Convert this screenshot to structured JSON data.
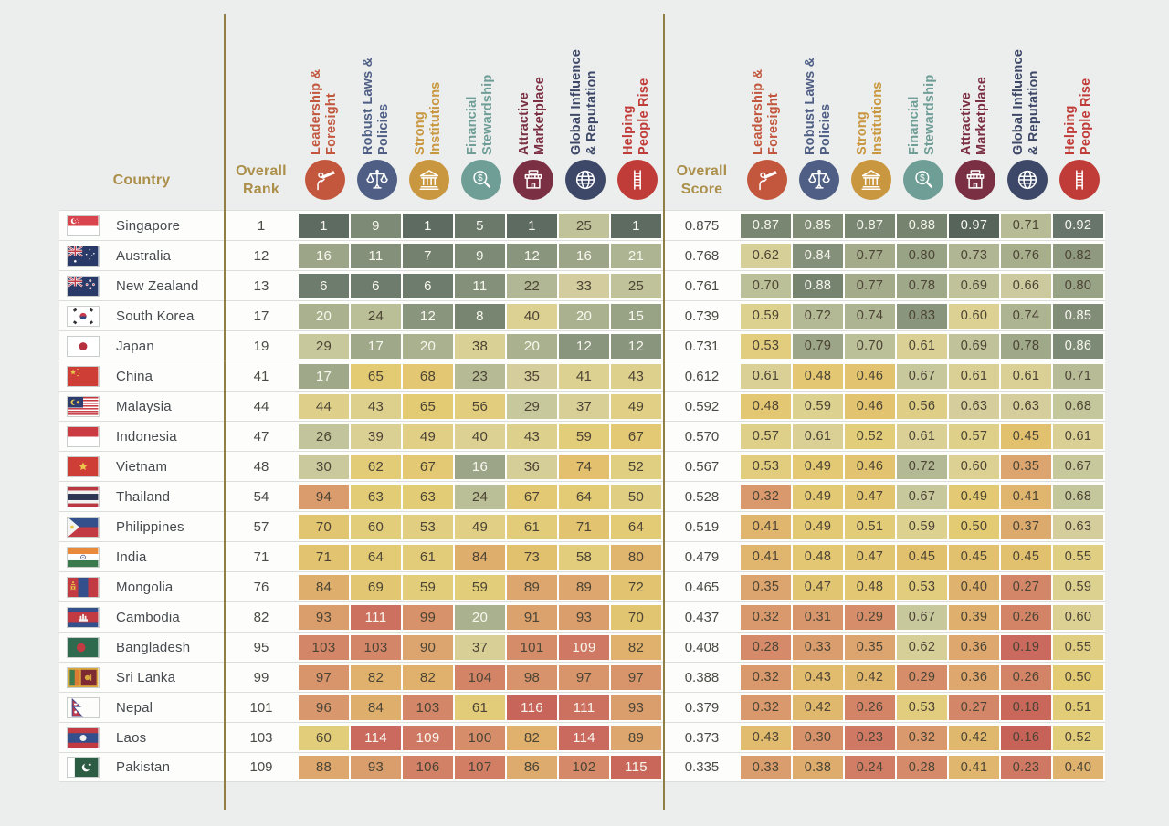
{
  "header": {
    "country_label": "Country",
    "overall_rank_label": "Overall Rank",
    "overall_score_label": "Overall Score",
    "categories": [
      {
        "id": "leadership-foresight",
        "line1": "Leadership &",
        "line2": "Foresight",
        "color": "#c2573e",
        "icon": "telescope-icon"
      },
      {
        "id": "robust-laws-policies",
        "line1": "Robust Laws &",
        "line2": "Policies",
        "color": "#4e5e85",
        "icon": "scales-icon"
      },
      {
        "id": "strong-institutions",
        "line1": "Strong",
        "line2": "Institutions",
        "color": "#c9973f",
        "icon": "bank-icon"
      },
      {
        "id": "financial-stewardship",
        "line1": "Financial",
        "line2": "Stewardship",
        "color": "#6f9e96",
        "icon": "magnifier-dollar-icon"
      },
      {
        "id": "attractive-marketplace",
        "line1": "Attractive",
        "line2": "Marketplace",
        "color": "#7b2f43",
        "icon": "storefront-icon"
      },
      {
        "id": "global-influence-reputation",
        "line1": "Global Influence",
        "line2": "& Reputation",
        "color": "#3d4767",
        "icon": "globe-icon"
      },
      {
        "id": "helping-people-rise",
        "line1": "Helping",
        "line2": "People Rise",
        "color": "#c03c38",
        "icon": "ladder-icon"
      }
    ]
  },
  "chart_data": {
    "type": "heatmap",
    "title": "Country governance rankings and scores by pillar",
    "pillars": [
      "Leadership & Foresight",
      "Robust Laws & Policies",
      "Strong Institutions",
      "Financial Stewardship",
      "Attractive Marketplace",
      "Global Influence & Reputation",
      "Helping People Rise"
    ],
    "legend_position": "none",
    "rows": [
      {
        "country": "Singapore",
        "flag": "sg",
        "overall_rank": 1,
        "ranks": [
          1,
          9,
          1,
          5,
          1,
          25,
          1
        ],
        "overall_score": "0.875",
        "scores": [
          "0.87",
          "0.85",
          "0.87",
          "0.88",
          "0.97",
          "0.71",
          "0.92"
        ]
      },
      {
        "country": "Australia",
        "flag": "au",
        "overall_rank": 12,
        "ranks": [
          16,
          11,
          7,
          9,
          12,
          16,
          21
        ],
        "overall_score": "0.768",
        "scores": [
          "0.62",
          "0.84",
          "0.77",
          "0.80",
          "0.73",
          "0.76",
          "0.82"
        ]
      },
      {
        "country": "New Zealand",
        "flag": "nz",
        "overall_rank": 13,
        "ranks": [
          6,
          6,
          6,
          11,
          22,
          33,
          25
        ],
        "overall_score": "0.761",
        "scores": [
          "0.70",
          "0.88",
          "0.77",
          "0.78",
          "0.69",
          "0.66",
          "0.80"
        ]
      },
      {
        "country": "South Korea",
        "flag": "kr",
        "overall_rank": 17,
        "ranks": [
          20,
          24,
          12,
          8,
          40,
          20,
          15
        ],
        "overall_score": "0.739",
        "scores": [
          "0.59",
          "0.72",
          "0.74",
          "0.83",
          "0.60",
          "0.74",
          "0.85"
        ]
      },
      {
        "country": "Japan",
        "flag": "jp",
        "overall_rank": 19,
        "ranks": [
          29,
          17,
          20,
          38,
          20,
          12,
          12
        ],
        "overall_score": "0.731",
        "scores": [
          "0.53",
          "0.79",
          "0.70",
          "0.61",
          "0.69",
          "0.78",
          "0.86"
        ]
      },
      {
        "country": "China",
        "flag": "cn",
        "overall_rank": 41,
        "ranks": [
          17,
          65,
          68,
          23,
          35,
          41,
          43
        ],
        "overall_score": "0.612",
        "scores": [
          "0.61",
          "0.48",
          "0.46",
          "0.67",
          "0.61",
          "0.61",
          "0.71"
        ]
      },
      {
        "country": "Malaysia",
        "flag": "my",
        "overall_rank": 44,
        "ranks": [
          44,
          43,
          65,
          56,
          29,
          37,
          49
        ],
        "overall_score": "0.592",
        "scores": [
          "0.48",
          "0.59",
          "0.46",
          "0.56",
          "0.63",
          "0.63",
          "0.68"
        ]
      },
      {
        "country": "Indonesia",
        "flag": "id",
        "overall_rank": 47,
        "ranks": [
          26,
          39,
          49,
          40,
          43,
          59,
          67
        ],
        "overall_score": "0.570",
        "scores": [
          "0.57",
          "0.61",
          "0.52",
          "0.61",
          "0.57",
          "0.45",
          "0.61"
        ]
      },
      {
        "country": "Vietnam",
        "flag": "vn",
        "overall_rank": 48,
        "ranks": [
          30,
          62,
          67,
          16,
          36,
          74,
          52
        ],
        "overall_score": "0.567",
        "scores": [
          "0.53",
          "0.49",
          "0.46",
          "0.72",
          "0.60",
          "0.35",
          "0.67"
        ]
      },
      {
        "country": "Thailand",
        "flag": "th",
        "overall_rank": 54,
        "ranks": [
          94,
          63,
          63,
          24,
          67,
          64,
          50
        ],
        "overall_score": "0.528",
        "scores": [
          "0.32",
          "0.49",
          "0.47",
          "0.67",
          "0.49",
          "0.41",
          "0.68"
        ]
      },
      {
        "country": "Philippines",
        "flag": "ph",
        "overall_rank": 57,
        "ranks": [
          70,
          60,
          53,
          49,
          61,
          71,
          64
        ],
        "overall_score": "0.519",
        "scores": [
          "0.41",
          "0.49",
          "0.51",
          "0.59",
          "0.50",
          "0.37",
          "0.63"
        ]
      },
      {
        "country": "India",
        "flag": "in",
        "overall_rank": 71,
        "ranks": [
          71,
          64,
          61,
          84,
          73,
          58,
          80
        ],
        "overall_score": "0.479",
        "scores": [
          "0.41",
          "0.48",
          "0.47",
          "0.45",
          "0.45",
          "0.45",
          "0.55"
        ]
      },
      {
        "country": "Mongolia",
        "flag": "mn",
        "overall_rank": 76,
        "ranks": [
          84,
          69,
          59,
          59,
          89,
          89,
          72
        ],
        "overall_score": "0.465",
        "scores": [
          "0.35",
          "0.47",
          "0.48",
          "0.53",
          "0.40",
          "0.27",
          "0.59"
        ]
      },
      {
        "country": "Cambodia",
        "flag": "kh",
        "overall_rank": 82,
        "ranks": [
          93,
          111,
          99,
          20,
          91,
          93,
          70
        ],
        "overall_score": "0.437",
        "scores": [
          "0.32",
          "0.31",
          "0.29",
          "0.67",
          "0.39",
          "0.26",
          "0.60"
        ]
      },
      {
        "country": "Bangladesh",
        "flag": "bd",
        "overall_rank": 95,
        "ranks": [
          103,
          103,
          90,
          37,
          101,
          109,
          82
        ],
        "overall_score": "0.408",
        "scores": [
          "0.28",
          "0.33",
          "0.35",
          "0.62",
          "0.36",
          "0.19",
          "0.55"
        ]
      },
      {
        "country": "Sri Lanka",
        "flag": "lk",
        "overall_rank": 99,
        "ranks": [
          97,
          82,
          82,
          104,
          98,
          97,
          97
        ],
        "overall_score": "0.388",
        "scores": [
          "0.32",
          "0.43",
          "0.42",
          "0.29",
          "0.36",
          "0.26",
          "0.50"
        ]
      },
      {
        "country": "Nepal",
        "flag": "np",
        "overall_rank": 101,
        "ranks": [
          96,
          84,
          103,
          61,
          116,
          111,
          93
        ],
        "overall_score": "0.379",
        "scores": [
          "0.32",
          "0.42",
          "0.26",
          "0.53",
          "0.27",
          "0.18",
          "0.51"
        ]
      },
      {
        "country": "Laos",
        "flag": "la",
        "overall_rank": 103,
        "ranks": [
          60,
          114,
          109,
          100,
          82,
          114,
          89
        ],
        "overall_score": "0.373",
        "scores": [
          "0.43",
          "0.30",
          "0.23",
          "0.32",
          "0.42",
          "0.16",
          "0.52"
        ]
      },
      {
        "country": "Pakistan",
        "flag": "pk",
        "overall_rank": 109,
        "ranks": [
          88,
          93,
          106,
          107,
          86,
          102,
          115
        ],
        "overall_score": "0.335",
        "scores": [
          "0.33",
          "0.38",
          "0.24",
          "0.28",
          "0.41",
          "0.23",
          "0.40"
        ]
      }
    ]
  },
  "colors": {
    "background": "#eceeed",
    "row_bg": "#fdfdfc",
    "separator": "#dcdedb",
    "divider_line": "#8f7f45",
    "header_gold": "#ab8f4b",
    "cell_text_dark": "#4c4435",
    "cell_text_light": "#f8f7ef",
    "heat_stops": [
      [
        0.15,
        "#c55f57"
      ],
      [
        0.2,
        "#cb6c5e"
      ],
      [
        0.25,
        "#d28066"
      ],
      [
        0.3,
        "#d7926b"
      ],
      [
        0.35,
        "#dca46e"
      ],
      [
        0.4,
        "#dfb26d"
      ],
      [
        0.45,
        "#e2c16e"
      ],
      [
        0.5,
        "#e3cb74"
      ],
      [
        0.55,
        "#e0cf83"
      ],
      [
        0.6,
        "#dcd192"
      ],
      [
        0.64,
        "#d2cc9e"
      ],
      [
        0.68,
        "#c4c69c"
      ],
      [
        0.72,
        "#b3b995"
      ],
      [
        0.76,
        "#a6ae8c"
      ],
      [
        0.8,
        "#98a285"
      ],
      [
        0.84,
        "#85907a"
      ],
      [
        0.88,
        "#75836f"
      ],
      [
        0.92,
        "#67756a"
      ],
      [
        0.97,
        "#56645a"
      ]
    ]
  }
}
